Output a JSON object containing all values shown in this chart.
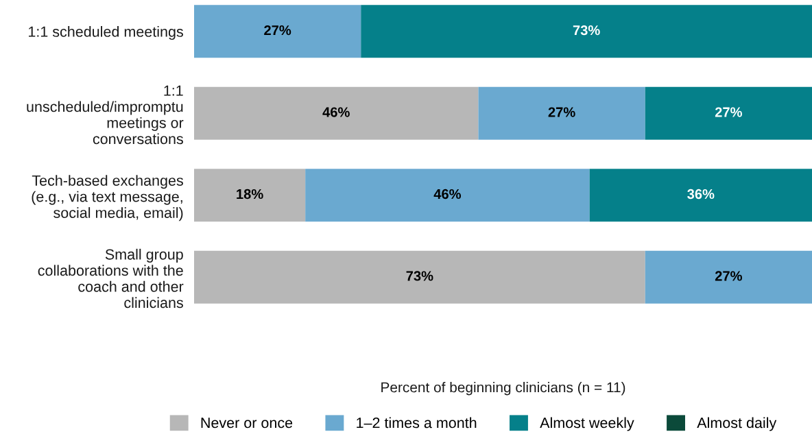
{
  "chart_data": {
    "type": "bar",
    "orientation": "horizontal",
    "stacked": true,
    "categories": [
      "1:1 scheduled meetings",
      "1:1\nunscheduled/impromptu\nmeetings or\nconversations",
      "Tech-based exchanges\n(e.g., via text message,\nsocial media, email)",
      "Small group\ncollaborations with the\ncoach and other\nclinicians"
    ],
    "series": [
      {
        "name": "Never or once",
        "color": "#b7b7b7",
        "values": [
          null,
          46,
          18,
          73
        ],
        "value_labels": [
          null,
          "46%",
          "18%",
          "73%"
        ]
      },
      {
        "name": "1–2 times a month",
        "color": "#6aa9d0",
        "values": [
          27,
          27,
          46,
          27
        ],
        "value_labels": [
          "27%",
          "27%",
          "46%",
          "27%"
        ]
      },
      {
        "name": "Almost weekly",
        "color": "#05808a",
        "values": [
          73,
          27,
          36,
          null
        ],
        "value_labels": [
          "73%",
          "27%",
          "36%",
          null
        ]
      },
      {
        "name": "Almost daily",
        "color": "#0b4a3a",
        "values": [
          null,
          null,
          null,
          null
        ]
      }
    ],
    "xlabel": "Percent of beginning clinicians (n = 11)",
    "xlim": [
      0,
      100
    ],
    "tick_labels": "y",
    "legend": "bottom"
  }
}
